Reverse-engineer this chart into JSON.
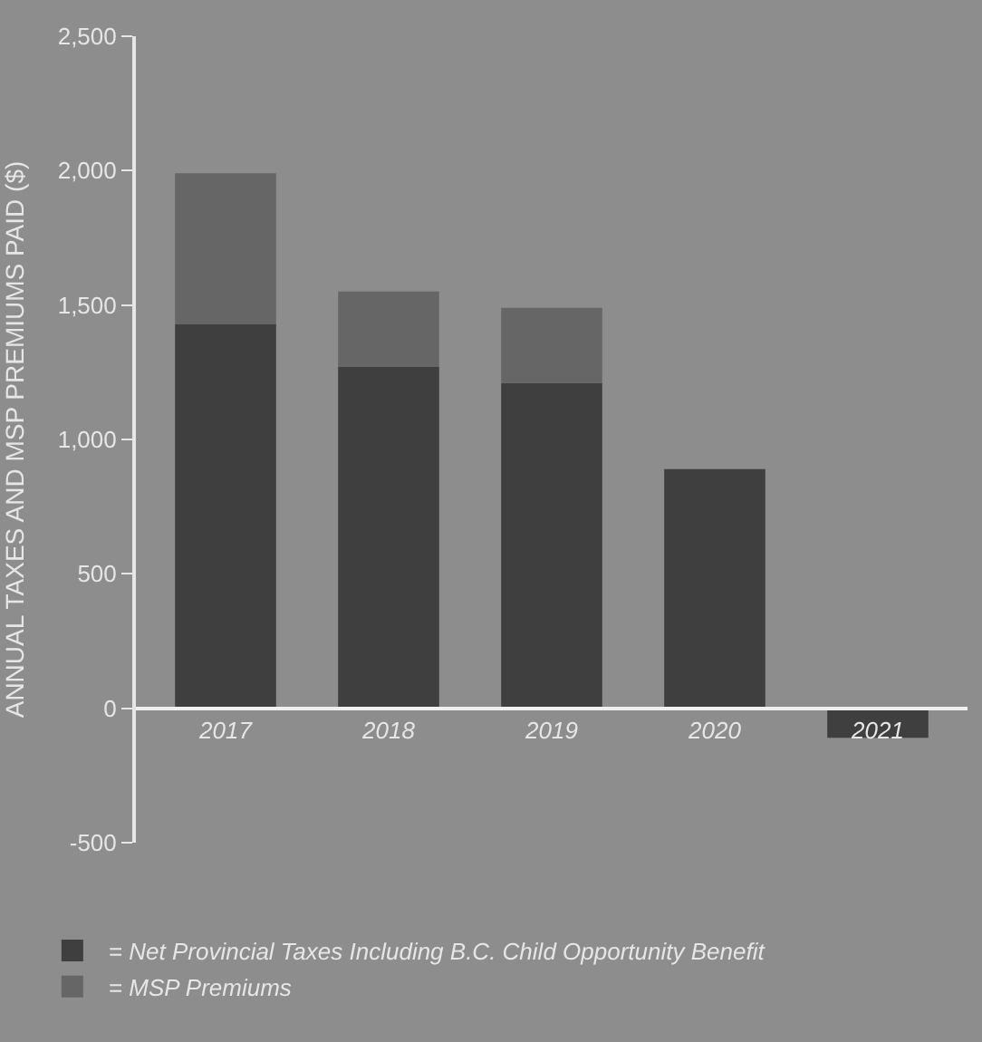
{
  "chart_data": {
    "type": "bar",
    "stacked": true,
    "ylabel": "ANNUAL TAXES AND MSP PREMIUMS PAID ($)",
    "categories": [
      "2017",
      "2018",
      "2019",
      "2020",
      "2021"
    ],
    "series": [
      {
        "name": "= Net Provincial Taxes Including B.C. Child Opportunity Benefit",
        "color": "#3f3f3f",
        "values": [
          1430,
          1270,
          1210,
          890,
          -110
        ]
      },
      {
        "name": "= MSP Premiums",
        "color": "#666666",
        "values": [
          560,
          280,
          280,
          null,
          null
        ]
      }
    ],
    "ylim": [
      -500,
      2500
    ],
    "yticks": [
      {
        "value": -500,
        "label": "-500"
      },
      0,
      500,
      {
        "value": 1000,
        "label": "1,000"
      },
      {
        "value": 1500,
        "label": "1,500"
      },
      {
        "value": 2000,
        "label": "2,000"
      },
      {
        "value": 2500,
        "label": "2,500"
      }
    ],
    "grid": false,
    "legend": "bottom left"
  }
}
